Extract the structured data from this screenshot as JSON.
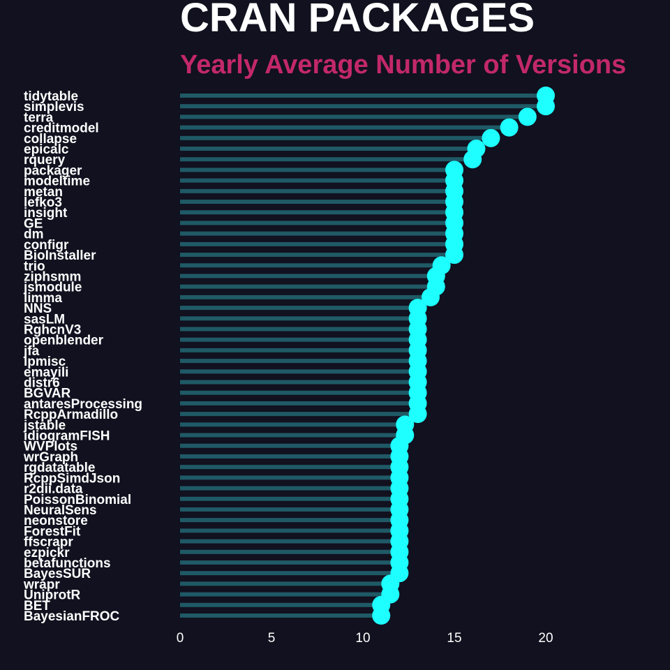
{
  "colors": {
    "background": "#11111f",
    "bar": "#1f5a66",
    "point": "#1effff",
    "title": "#ffffff",
    "subtitle": "#c2286a",
    "text": "#ffffff"
  },
  "chart_data": {
    "type": "lollipop",
    "title": "CRAN PACKAGES",
    "subtitle": "Yearly Average Number of Versions",
    "xlabel": "",
    "ylabel": "",
    "xlim": [
      0,
      25
    ],
    "xticks": [
      0,
      5,
      10,
      15,
      20
    ],
    "grid": false,
    "legend": "none",
    "categories": [
      "tidytable",
      "simplevis",
      "terra",
      "creditmodel",
      "collapse",
      "epicalc",
      "rquery",
      "packager",
      "modeltime",
      "metan",
      "lefko3",
      "insight",
      "GE",
      "dm",
      "configr",
      "BioInstaller",
      "trio",
      "ziphsmm",
      "jsmodule",
      "limma",
      "NNS",
      "sasLM",
      "RghcnV3",
      "openblender",
      "jfa",
      "lpmisc",
      "emayili",
      "distr6",
      "BGVAR",
      "antaresProcessing",
      "RcppArmadillo",
      "jstable",
      "idiogramFISH",
      "WVPlots",
      "wrGraph",
      "rgdatatable",
      "RcppSimdJson",
      "r2dii.data",
      "PoissonBinomial",
      "NeuralSens",
      "neonstore",
      "ForestFit",
      "ffscrapr",
      "ezpickr",
      "betafunctions",
      "BayesSUR",
      "wrapr",
      "UniprotR",
      "BET",
      "BayesianFROC"
    ],
    "values": [
      20,
      20,
      19,
      18,
      17,
      16.2,
      16,
      15,
      15,
      15,
      15,
      15,
      15,
      15,
      15,
      15,
      14.3,
      14,
      14,
      13.7,
      13,
      13,
      13,
      13,
      13,
      13,
      13,
      13,
      13,
      13,
      13,
      12.3,
      12.3,
      12,
      12,
      12,
      12,
      12,
      12,
      12,
      12,
      12,
      12,
      12,
      12,
      12,
      11.5,
      11.5,
      11,
      11
    ]
  }
}
